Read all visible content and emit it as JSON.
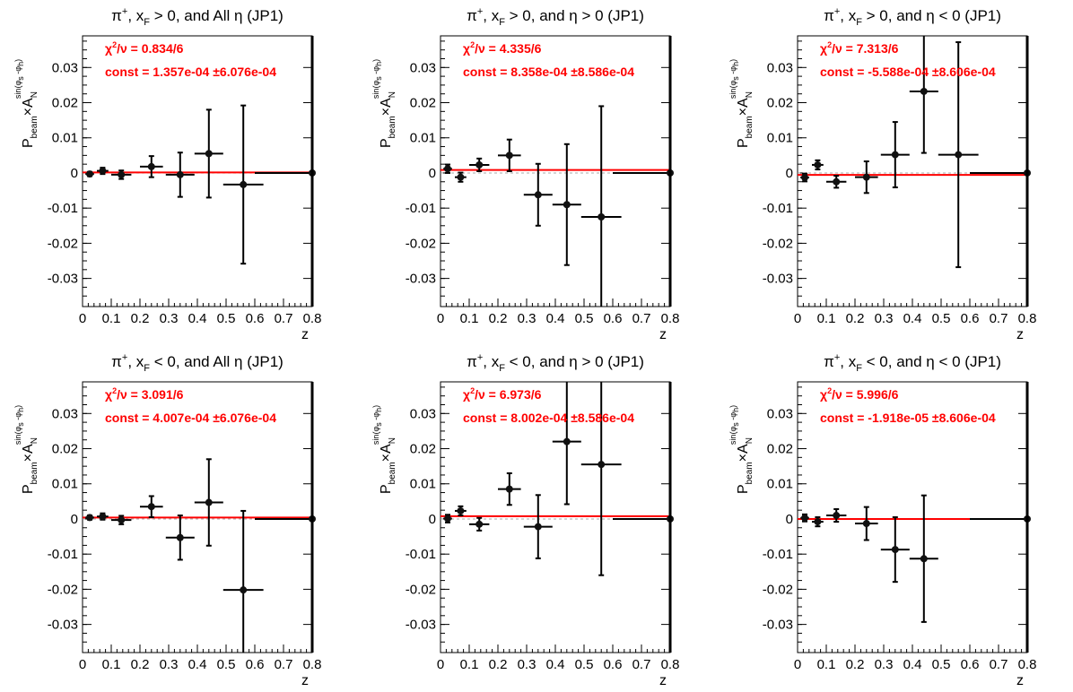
{
  "axes_common": {
    "xlabel": "z",
    "ylabel_main": "P",
    "ylabel_sub": "beam",
    "ylabel_sym": "×A",
    "ylabel_n": "N",
    "ylabel_sup": "sin(φ",
    "ylabel_sup_s": "s",
    "ylabel_sup_mid": " -φ",
    "ylabel_sup_h": "h",
    "ylabel_sup_end": ")",
    "xlim": [
      0,
      0.8
    ],
    "ylim": [
      -0.038,
      0.039
    ],
    "xticks": [
      0,
      0.1,
      0.2,
      0.3,
      0.4,
      0.5,
      0.6,
      0.7,
      0.8
    ],
    "xtick_labels": [
      "0",
      "0.1",
      "0.2",
      "0.3",
      "0.4",
      "0.5",
      "0.6",
      "0.7",
      "0.8"
    ],
    "yticks": [
      -0.03,
      -0.02,
      -0.01,
      0,
      0.01,
      0.02,
      0.03
    ],
    "ytick_labels": [
      "-0.03",
      "-0.02",
      "-0.01",
      "0",
      "0.01",
      "0.02",
      "0.03"
    ],
    "fit_color": "#ff0000",
    "marker_color": "#111111"
  },
  "chart_data": [
    {
      "type": "scatter",
      "title": {
        "pre": "π",
        "sup": "+",
        "mid": ", x",
        "sub": "F",
        "post": " > 0, and All η (JP1)"
      },
      "chi2": {
        "chi": "χ",
        "sup": "2",
        "rest": "/ν = 0.834/6"
      },
      "const_text": "const = 1.357e-04  ±6.076e-04",
      "fit_const": 0.0001357,
      "points": [
        {
          "x": 0.025,
          "y": -0.0003,
          "xerr": 0.015,
          "yerr": 0.0006
        },
        {
          "x": 0.07,
          "y": 0.0006,
          "xerr": 0.02,
          "yerr": 0.0009
        },
        {
          "x": 0.135,
          "y": -0.0005,
          "xerr": 0.035,
          "yerr": 0.0012
        },
        {
          "x": 0.24,
          "y": 0.0018,
          "xerr": 0.04,
          "yerr": 0.003
        },
        {
          "x": 0.34,
          "y": -0.0005,
          "xerr": 0.05,
          "yerr": 0.0063
        },
        {
          "x": 0.44,
          "y": 0.0055,
          "xerr": 0.05,
          "yerr": 0.0125
        },
        {
          "x": 0.56,
          "y": -0.0033,
          "xerr": 0.07,
          "yerr": 0.0225
        },
        {
          "x": 0.8,
          "y": 0.0,
          "xerr": 0.2,
          "yerr": 0.0
        }
      ]
    },
    {
      "type": "scatter",
      "title": {
        "pre": "π",
        "sup": "+",
        "mid": ", x",
        "sub": "F",
        "post": " > 0, and η > 0 (JP1)"
      },
      "chi2": {
        "chi": "χ",
        "sup": "2",
        "rest": "/ν = 4.335/6"
      },
      "const_text": "const = 8.358e-04  ±8.586e-04",
      "fit_const": 0.0008358,
      "points": [
        {
          "x": 0.025,
          "y": 0.0012,
          "xerr": 0.015,
          "yerr": 0.0012
        },
        {
          "x": 0.07,
          "y": -0.0012,
          "xerr": 0.02,
          "yerr": 0.0013
        },
        {
          "x": 0.135,
          "y": 0.0023,
          "xerr": 0.035,
          "yerr": 0.0018
        },
        {
          "x": 0.24,
          "y": 0.005,
          "xerr": 0.04,
          "yerr": 0.0045
        },
        {
          "x": 0.34,
          "y": -0.0062,
          "xerr": 0.05,
          "yerr": 0.0088
        },
        {
          "x": 0.44,
          "y": -0.009,
          "xerr": 0.05,
          "yerr": 0.0172
        },
        {
          "x": 0.56,
          "y": -0.0125,
          "xerr": 0.07,
          "yerr": 0.0315
        },
        {
          "x": 0.8,
          "y": 0.0,
          "xerr": 0.2,
          "yerr": 0.0
        }
      ]
    },
    {
      "type": "scatter",
      "title": {
        "pre": "π",
        "sup": "+",
        "mid": ", x",
        "sub": "F",
        "post": " > 0, and η < 0 (JP1)"
      },
      "chi2": {
        "chi": "χ",
        "sup": "2",
        "rest": "/ν = 7.313/6"
      },
      "const_text": "const = -5.588e-04  ±8.606e-04",
      "fit_const": -0.0005588,
      "points": [
        {
          "x": 0.025,
          "y": -0.0013,
          "xerr": 0.015,
          "yerr": 0.0011
        },
        {
          "x": 0.07,
          "y": 0.0023,
          "xerr": 0.02,
          "yerr": 0.0013
        },
        {
          "x": 0.135,
          "y": -0.0025,
          "xerr": 0.035,
          "yerr": 0.0017
        },
        {
          "x": 0.24,
          "y": -0.0012,
          "xerr": 0.04,
          "yerr": 0.0045
        },
        {
          "x": 0.34,
          "y": 0.0052,
          "xerr": 0.05,
          "yerr": 0.0093
        },
        {
          "x": 0.44,
          "y": 0.0232,
          "xerr": 0.05,
          "yerr": 0.0175
        },
        {
          "x": 0.56,
          "y": 0.0052,
          "xerr": 0.07,
          "yerr": 0.032
        },
        {
          "x": 0.8,
          "y": 0.0,
          "xerr": 0.2,
          "yerr": 0.0
        }
      ]
    },
    {
      "type": "scatter",
      "title": {
        "pre": "π",
        "sup": "+",
        "mid": ", x",
        "sub": "F",
        "post": " < 0, and All η (JP1)"
      },
      "chi2": {
        "chi": "χ",
        "sup": "2",
        "rest": "/ν = 3.091/6"
      },
      "const_text": "const = 4.007e-04  ±6.076e-04",
      "fit_const": 0.0004007,
      "points": [
        {
          "x": 0.025,
          "y": 0.0004,
          "xerr": 0.015,
          "yerr": 0.0006
        },
        {
          "x": 0.07,
          "y": 0.0007,
          "xerr": 0.02,
          "yerr": 0.0009
        },
        {
          "x": 0.135,
          "y": -0.0003,
          "xerr": 0.035,
          "yerr": 0.0012
        },
        {
          "x": 0.24,
          "y": 0.0035,
          "xerr": 0.04,
          "yerr": 0.003
        },
        {
          "x": 0.34,
          "y": -0.0053,
          "xerr": 0.05,
          "yerr": 0.0063
        },
        {
          "x": 0.44,
          "y": 0.0047,
          "xerr": 0.05,
          "yerr": 0.0123
        },
        {
          "x": 0.56,
          "y": -0.0202,
          "xerr": 0.07,
          "yerr": 0.0225
        },
        {
          "x": 0.8,
          "y": 0.0,
          "xerr": 0.2,
          "yerr": 0.0
        }
      ]
    },
    {
      "type": "scatter",
      "title": {
        "pre": "π",
        "sup": "+",
        "mid": ", x",
        "sub": "F",
        "post": " < 0, and η > 0 (JP1)"
      },
      "chi2": {
        "chi": "χ",
        "sup": "2",
        "rest": "/ν = 6.973/6"
      },
      "const_text": "const = 8.002e-04  ±8.586e-04",
      "fit_const": 0.0008002,
      "points": [
        {
          "x": 0.025,
          "y": 0.0001,
          "xerr": 0.015,
          "yerr": 0.0011
        },
        {
          "x": 0.07,
          "y": 0.0023,
          "xerr": 0.02,
          "yerr": 0.0013
        },
        {
          "x": 0.135,
          "y": -0.0015,
          "xerr": 0.035,
          "yerr": 0.0018
        },
        {
          "x": 0.24,
          "y": 0.0085,
          "xerr": 0.04,
          "yerr": 0.0045
        },
        {
          "x": 0.34,
          "y": -0.0022,
          "xerr": 0.05,
          "yerr": 0.009
        },
        {
          "x": 0.44,
          "y": 0.022,
          "xerr": 0.05,
          "yerr": 0.0178
        },
        {
          "x": 0.56,
          "y": 0.0155,
          "xerr": 0.07,
          "yerr": 0.0315
        },
        {
          "x": 0.8,
          "y": 0.0,
          "xerr": 0.2,
          "yerr": 0.0
        }
      ]
    },
    {
      "type": "scatter",
      "title": {
        "pre": "π",
        "sup": "+",
        "mid": ", x",
        "sub": "F",
        "post": " < 0, and η < 0 (JP1)"
      },
      "chi2": {
        "chi": "χ",
        "sup": "2",
        "rest": "/ν = 5.996/6"
      },
      "const_text": "const = -1.918e-05  ±8.606e-04",
      "fit_const": -1.918e-05,
      "points": [
        {
          "x": 0.025,
          "y": 0.0003,
          "xerr": 0.015,
          "yerr": 0.001
        },
        {
          "x": 0.07,
          "y": -0.0008,
          "xerr": 0.02,
          "yerr": 0.0013
        },
        {
          "x": 0.135,
          "y": 0.001,
          "xerr": 0.035,
          "yerr": 0.0018
        },
        {
          "x": 0.24,
          "y": -0.0013,
          "xerr": 0.04,
          "yerr": 0.0047
        },
        {
          "x": 0.34,
          "y": -0.0087,
          "xerr": 0.05,
          "yerr": 0.0092
        },
        {
          "x": 0.44,
          "y": -0.0113,
          "xerr": 0.05,
          "yerr": 0.018
        },
        {
          "x": 0.8,
          "y": 0.0,
          "xerr": 0.2,
          "yerr": 0.0
        }
      ]
    }
  ]
}
